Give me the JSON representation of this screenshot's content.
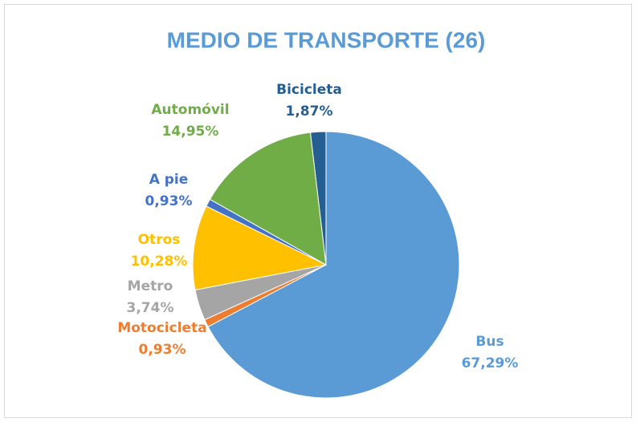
{
  "chart_data": {
    "type": "pie",
    "title": "MEDIO DE TRANSPORTE (26)",
    "categories": [
      "Bus",
      "Motocicleta",
      "Metro",
      "Otros",
      "A pie",
      "Automóvil",
      "Bicicleta"
    ],
    "values": [
      67.29,
      0.93,
      3.74,
      10.28,
      0.93,
      14.95,
      1.87
    ],
    "value_labels": [
      "67,29%",
      "0,93%",
      "3,74%",
      "10,28%",
      "0,93%",
      "14,95%",
      "1,87%"
    ],
    "colors": [
      "#5b9bd5",
      "#ed7d31",
      "#a5a5a5",
      "#ffc000",
      "#4472c4",
      "#70ad47",
      "#255e91"
    ]
  }
}
